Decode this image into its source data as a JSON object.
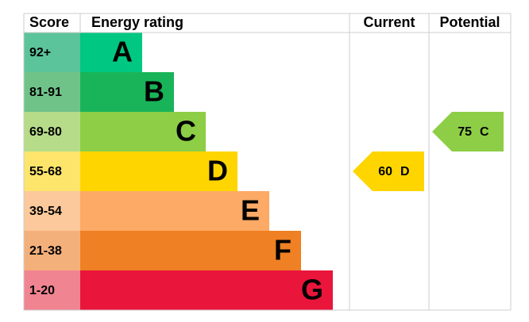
{
  "headers": {
    "score": "Score",
    "rating": "Energy rating",
    "current": "Current",
    "potential": "Potential"
  },
  "bands": [
    {
      "score": "92+",
      "letter": "A"
    },
    {
      "score": "81-91",
      "letter": "B"
    },
    {
      "score": "69-80",
      "letter": "C"
    },
    {
      "score": "55-68",
      "letter": "D"
    },
    {
      "score": "39-54",
      "letter": "E"
    },
    {
      "score": "21-38",
      "letter": "F"
    },
    {
      "score": "1-20",
      "letter": "G"
    }
  ],
  "current": {
    "value": 60,
    "letter": "D"
  },
  "potential": {
    "value": 75,
    "letter": "C"
  }
}
